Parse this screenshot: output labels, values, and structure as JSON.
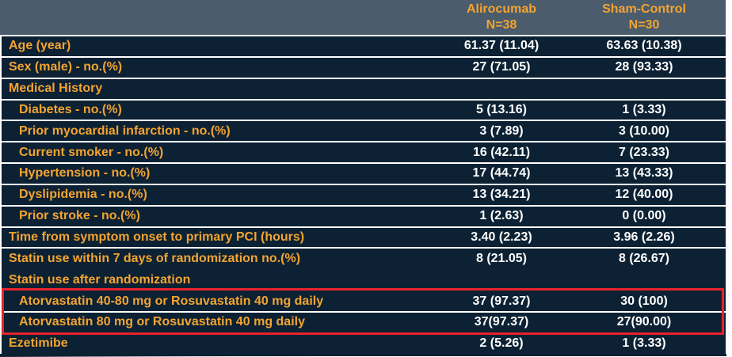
{
  "colors": {
    "header_bg": "#4B5C6C",
    "body_bg": "#0C2133",
    "accent_orange": "#F3A431",
    "value_white": "#FFFFFF",
    "separator": "#FFFFFF",
    "highlight_red": "#E8232C"
  },
  "table": {
    "columns": [
      {
        "name": "Alirocumab",
        "n": "N=38"
      },
      {
        "name": "Sham-Control",
        "n": "N=30"
      }
    ],
    "rows": [
      {
        "label": "Age (year)",
        "values": [
          "61.37 (11.04)",
          "63.63 (10.38)"
        ],
        "indent": false
      },
      {
        "label": "Sex (male) - no.(%)",
        "values": [
          "27 (71.05)",
          "28 (93.33)"
        ],
        "indent": false
      },
      {
        "label": "Medical History",
        "values": [
          "",
          ""
        ],
        "indent": false
      },
      {
        "label": "Diabetes - no.(%)",
        "values": [
          "5 (13.16)",
          "1 (3.33)"
        ],
        "indent": true
      },
      {
        "label": "Prior myocardial infarction - no.(%)",
        "values": [
          "3 (7.89)",
          "3 (10.00)"
        ],
        "indent": true
      },
      {
        "label": "Current smoker - no.(%)",
        "values": [
          "16 (42.11)",
          "7 (23.33)"
        ],
        "indent": true
      },
      {
        "label": "Hypertension - no.(%)",
        "values": [
          "17 (44.74)",
          "13 (43.33)"
        ],
        "indent": true
      },
      {
        "label": "Dyslipidemia - no.(%)",
        "values": [
          "13 (34.21)",
          "12 (40.00)"
        ],
        "indent": true
      },
      {
        "label": "Prior stroke - no.(%)",
        "values": [
          "1 (2.63)",
          "0 (0.00)"
        ],
        "indent": true
      },
      {
        "label": "Time from symptom onset to primary PCI (hours)",
        "values": [
          "3.40 (2.23)",
          "3.96 (2.26)"
        ],
        "indent": false
      },
      {
        "label": "Statin use within 7 days of randomization no.(%)",
        "values": [
          "8 (21.05)",
          "8 (26.67)"
        ],
        "indent": false
      },
      {
        "label": "Statin use after randomization",
        "values": [
          "",
          ""
        ],
        "indent": false,
        "no_separator": true
      },
      {
        "label": "Atorvastatin 40-80 mg or Rosuvastatin 40 mg daily",
        "values": [
          "37 (97.37)",
          "30 (100)"
        ],
        "indent": true,
        "highlight": true
      },
      {
        "label": "Atorvastatin 80 mg or Rosuvastatin 40 mg daily",
        "values": [
          "37(97.37)",
          "27(90.00)"
        ],
        "indent": true,
        "highlight": true
      },
      {
        "label": "Ezetimibe",
        "values": [
          "2 (5.26)",
          "1 (3.33)"
        ],
        "indent": false,
        "no_separator": true
      }
    ]
  }
}
